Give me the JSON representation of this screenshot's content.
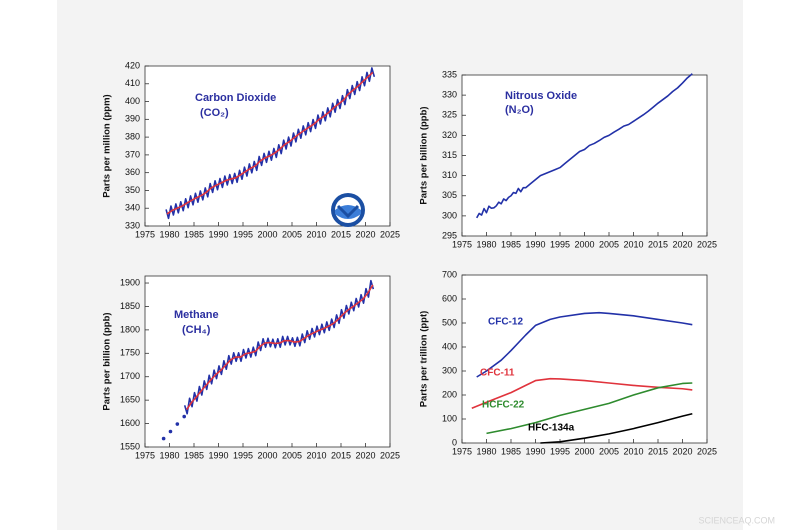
{
  "chart_data": [
    {
      "type": "line",
      "title": "Carbon Dioxide",
      "subtitle": "(CO₂)",
      "y_label": "Parts per million (ppm)",
      "xlim": [
        1975,
        2025
      ],
      "xticks": [
        1975,
        1980,
        1985,
        1990,
        1995,
        2000,
        2005,
        2010,
        2015,
        2020,
        2025
      ],
      "ylim": [
        330,
        420
      ],
      "yticks": [
        330,
        340,
        350,
        360,
        370,
        380,
        390,
        400,
        410,
        420
      ],
      "series": [
        {
          "color": "#2231a8",
          "x": [
            1979.3,
            1979.8,
            1980.3,
            1980.8,
            1981.3,
            1981.8,
            1982.3,
            1982.8,
            1983.3,
            1983.8,
            1984.3,
            1984.8,
            1985.3,
            1985.8,
            1986.3,
            1986.8,
            1987.3,
            1987.8,
            1988.3,
            1988.8,
            1989.3,
            1989.8,
            1990.3,
            1990.8,
            1991.3,
            1991.8,
            1992.3,
            1992.8,
            1993.3,
            1993.8,
            1994.3,
            1994.8,
            1995.3,
            1995.8,
            1996.3,
            1996.8,
            1997.3,
            1997.8,
            1998.3,
            1998.8,
            1999.3,
            1999.8,
            2000.3,
            2000.8,
            2001.3,
            2001.8,
            2002.3,
            2002.8,
            2003.3,
            2003.8,
            2004.3,
            2004.8,
            2005.3,
            2005.8,
            2006.3,
            2006.8,
            2007.3,
            2007.8,
            2008.3,
            2008.8,
            2009.3,
            2009.8,
            2010.3,
            2010.8,
            2011.3,
            2011.8,
            2012.3,
            2012.8,
            2013.3,
            2013.8,
            2014.3,
            2014.8,
            2015.3,
            2015.8,
            2016.3,
            2016.8,
            2017.3,
            2017.8,
            2018.3,
            2018.8,
            2019.3,
            2019.8,
            2020.3,
            2020.8,
            2021.3,
            2021.8
          ],
          "values": [
            339.3,
            334.3,
            341.2,
            336.2,
            342.4,
            337.4,
            343.6,
            338.6,
            345.3,
            340.3,
            346.9,
            341.9,
            348.4,
            343.4,
            349.7,
            344.7,
            351.4,
            346.4,
            353.9,
            348.9,
            355.4,
            350.4,
            356.7,
            351.7,
            358.1,
            353.1,
            358.9,
            353.9,
            359.6,
            354.6,
            361.3,
            356.3,
            363.1,
            358.1,
            364.9,
            359.9,
            366.3,
            361.3,
            369.1,
            364.1,
            370.8,
            365.8,
            372.0,
            367.0,
            373.6,
            368.6,
            375.7,
            370.7,
            378.3,
            373.3,
            380.0,
            375.0,
            382.3,
            377.3,
            384.4,
            379.4,
            386.3,
            381.3,
            388.1,
            383.1,
            389.9,
            384.9,
            392.4,
            387.4,
            394.2,
            389.2,
            396.4,
            391.4,
            399.0,
            394.0,
            401.1,
            396.1,
            403.3,
            398.3,
            406.7,
            401.7,
            409.0,
            404.0,
            411.2,
            406.2,
            413.9,
            408.9,
            416.4,
            411.4,
            418.9,
            413.9
          ]
        },
        {
          "color": "#e0333c",
          "x": [
            1979.5,
            1980.5,
            1981.5,
            1982.5,
            1983.5,
            1984.5,
            1985.5,
            1986.5,
            1987.5,
            1988.5,
            1989.5,
            1990.5,
            1991.5,
            1992.5,
            1993.5,
            1994.5,
            1995.5,
            1996.5,
            1997.5,
            1998.5,
            1999.5,
            2000.5,
            2001.5,
            2002.5,
            2003.5,
            2004.5,
            2005.5,
            2006.5,
            2007.5,
            2008.5,
            2009.5,
            2010.5,
            2011.5,
            2012.5,
            2013.5,
            2014.5,
            2015.5,
            2016.5,
            2017.5,
            2018.5,
            2019.5,
            2020.5,
            2021.5
          ],
          "values": [
            336.8,
            338.7,
            339.9,
            341.1,
            342.8,
            344.4,
            345.9,
            347.2,
            348.9,
            351.4,
            352.9,
            354.2,
            355.6,
            356.4,
            357.1,
            358.8,
            360.6,
            362.4,
            363.8,
            366.6,
            368.3,
            369.5,
            371.1,
            373.2,
            375.8,
            377.5,
            379.8,
            381.9,
            383.8,
            385.6,
            387.4,
            389.9,
            391.7,
            393.9,
            396.5,
            398.6,
            400.8,
            404.2,
            406.5,
            408.7,
            411.4,
            413.9,
            416.4
          ]
        }
      ]
    },
    {
      "type": "line",
      "title": "Nitrous Oxide",
      "subtitle": "(N₂O)",
      "y_label": "Parts per billion (ppb)",
      "xlim": [
        1975,
        2025
      ],
      "xticks": [
        1975,
        1980,
        1985,
        1990,
        1995,
        2000,
        2005,
        2010,
        2015,
        2020,
        2025
      ],
      "ylim": [
        295,
        335
      ],
      "yticks": [
        295,
        300,
        305,
        310,
        315,
        320,
        325,
        330,
        335
      ],
      "series": [
        {
          "color": "#2231a8",
          "x": [
            1978,
            1978.5,
            1979,
            1979.5,
            1980,
            1980.5,
            1981,
            1981.5,
            1982,
            1982.5,
            1983,
            1983.5,
            1984,
            1984.5,
            1985,
            1985.5,
            1986,
            1986.5,
            1987,
            1987.5,
            1988,
            1989,
            1990,
            1991,
            1992,
            1993,
            1994,
            1995,
            1996,
            1997,
            1998,
            1999,
            2000,
            2001,
            2002,
            2003,
            2004,
            2005,
            2006,
            2007,
            2008,
            2009,
            2010,
            2011,
            2012,
            2013,
            2014,
            2015,
            2016,
            2017,
            2018,
            2019,
            2020,
            2021,
            2022
          ],
          "values": [
            299.5,
            300.6,
            300.2,
            301.8,
            300.8,
            302.4,
            301.9,
            302.0,
            302.5,
            303.4,
            303.0,
            304.2,
            303.8,
            304.6,
            305.0,
            305.8,
            305.6,
            306.8,
            306.0,
            307.0,
            307.0,
            308.0,
            309.0,
            310.0,
            310.5,
            311.0,
            311.5,
            312.0,
            313.0,
            314.0,
            315.0,
            316.0,
            316.5,
            317.5,
            318.0,
            318.7,
            319.5,
            320.0,
            320.8,
            321.5,
            322.3,
            322.7,
            323.5,
            324.3,
            325.1,
            326.0,
            327.0,
            328.0,
            328.9,
            329.8,
            330.9,
            331.8,
            333.0,
            334.3,
            335.3
          ]
        }
      ]
    },
    {
      "type": "line",
      "title": "Methane",
      "subtitle": "(CH₄)",
      "y_label": "Parts per billion (ppb)",
      "xlim": [
        1975,
        2025
      ],
      "xticks": [
        1975,
        1980,
        1985,
        1990,
        1995,
        2000,
        2005,
        2010,
        2015,
        2020,
        2025
      ],
      "ylim": [
        1550,
        1915
      ],
      "yticks": [
        1550,
        1600,
        1650,
        1700,
        1750,
        1800,
        1850,
        1900
      ],
      "series": [
        {
          "color": "#2231a8",
          "style": "points",
          "x": [
            1978.8,
            1980.2,
            1981.6,
            1983.0
          ],
          "values": [
            1568,
            1583,
            1599,
            1615
          ]
        },
        {
          "color": "#2231a8",
          "x": [
            1983.1,
            1983.6,
            1984.1,
            1984.6,
            1985.1,
            1985.6,
            1986.1,
            1986.6,
            1987.1,
            1987.6,
            1988.1,
            1988.6,
            1989.1,
            1989.6,
            1990.1,
            1990.6,
            1991.1,
            1991.6,
            1992.1,
            1992.6,
            1993.1,
            1993.6,
            1994.1,
            1994.6,
            1995.1,
            1995.6,
            1996.1,
            1996.6,
            1997.1,
            1997.6,
            1998.1,
            1998.6,
            1999.1,
            1999.6,
            2000.1,
            2000.6,
            2001.1,
            2001.6,
            2002.1,
            2002.6,
            2003.1,
            2003.6,
            2004.1,
            2004.6,
            2005.1,
            2005.6,
            2006.1,
            2006.6,
            2007.1,
            2007.6,
            2008.1,
            2008.6,
            2009.1,
            2009.6,
            2010.1,
            2010.6,
            2011.1,
            2011.6,
            2012.1,
            2012.6,
            2013.1,
            2013.6,
            2014.1,
            2014.6,
            2015.1,
            2015.6,
            2016.1,
            2016.6,
            2017.1,
            2017.6,
            2018.1,
            2018.6,
            2019.1,
            2019.6,
            2020.1,
            2020.6,
            2021.1,
            2021.6
          ],
          "values": [
            1639,
            1621,
            1654,
            1636,
            1666,
            1648,
            1679,
            1661,
            1691,
            1673,
            1703,
            1685,
            1714,
            1696,
            1723,
            1705,
            1734,
            1716,
            1745,
            1727,
            1751,
            1733,
            1751,
            1733,
            1758,
            1740,
            1760,
            1742,
            1763,
            1745,
            1774,
            1756,
            1781,
            1763,
            1782,
            1764,
            1780,
            1762,
            1781,
            1763,
            1786,
            1768,
            1786,
            1768,
            1783,
            1765,
            1784,
            1766,
            1791,
            1773,
            1798,
            1780,
            1803,
            1785,
            1808,
            1790,
            1812,
            1794,
            1817,
            1799,
            1823,
            1805,
            1832,
            1814,
            1843,
            1825,
            1852,
            1834,
            1859,
            1841,
            1867,
            1849,
            1875,
            1857,
            1888,
            1870,
            1905,
            1887
          ]
        },
        {
          "color": "#e0333c",
          "x": [
            1983.5,
            1984.5,
            1985.5,
            1986.5,
            1987.5,
            1988.5,
            1989.5,
            1990.5,
            1991.5,
            1992.5,
            1993.5,
            1994.5,
            1995.5,
            1996.5,
            1997.5,
            1998.5,
            1999.5,
            2000.5,
            2001.5,
            2002.5,
            2003.5,
            2004.5,
            2005.5,
            2006.5,
            2007.5,
            2008.5,
            2009.5,
            2010.5,
            2011.5,
            2012.5,
            2013.5,
            2014.5,
            2015.5,
            2016.5,
            2017.5,
            2018.5,
            2019.5,
            2020.5,
            2021.5
          ],
          "values": [
            1630,
            1645,
            1657,
            1670,
            1682,
            1694,
            1705,
            1714,
            1725,
            1736,
            1742,
            1742,
            1749,
            1751,
            1754,
            1765,
            1772,
            1773,
            1771,
            1772,
            1777,
            1777,
            1774,
            1775,
            1782,
            1789,
            1794,
            1799,
            1803,
            1808,
            1814,
            1823,
            1834,
            1843,
            1850,
            1858,
            1866,
            1879,
            1896
          ]
        }
      ]
    },
    {
      "type": "line",
      "y_label": "Parts per trillion (ppt)",
      "series_labels": true,
      "xlim": [
        1975,
        2025
      ],
      "xticks": [
        1975,
        1980,
        1985,
        1990,
        1995,
        2000,
        2005,
        2010,
        2015,
        2020,
        2025
      ],
      "ylim": [
        0,
        700
      ],
      "yticks": [
        0,
        100,
        200,
        300,
        400,
        500,
        600,
        700
      ],
      "series": [
        {
          "name": "CFC-12",
          "color": "#2231a8",
          "x": [
            1978,
            1980,
            1983,
            1985,
            1988,
            1990,
            1993,
            1995,
            2000,
            2003,
            2005,
            2010,
            2015,
            2020,
            2022
          ],
          "values": [
            275,
            300,
            345,
            385,
            450,
            490,
            515,
            525,
            540,
            543,
            540,
            530,
            515,
            500,
            493
          ]
        },
        {
          "name": "CFC-11",
          "color": "#e0333c",
          "x": [
            1977,
            1980,
            1985,
            1988,
            1990,
            1993,
            1995,
            2000,
            2005,
            2010,
            2015,
            2020,
            2022
          ],
          "values": [
            145,
            170,
            210,
            240,
            260,
            268,
            267,
            260,
            250,
            240,
            232,
            226,
            221
          ]
        },
        {
          "name": "HCFC-22",
          "color": "#2e8b2e",
          "x": [
            1980,
            1985,
            1990,
            1995,
            2000,
            2005,
            2010,
            2015,
            2020,
            2022
          ],
          "values": [
            40,
            60,
            85,
            115,
            140,
            165,
            200,
            230,
            248,
            250
          ]
        },
        {
          "name": "HFC-134a",
          "color": "#000000",
          "x": [
            1991,
            1995,
            2000,
            2005,
            2010,
            2015,
            2020,
            2022
          ],
          "values": [
            0,
            5,
            20,
            38,
            60,
            85,
            112,
            122
          ]
        }
      ]
    }
  ],
  "watermark": "SCIENCEAQ.COM"
}
